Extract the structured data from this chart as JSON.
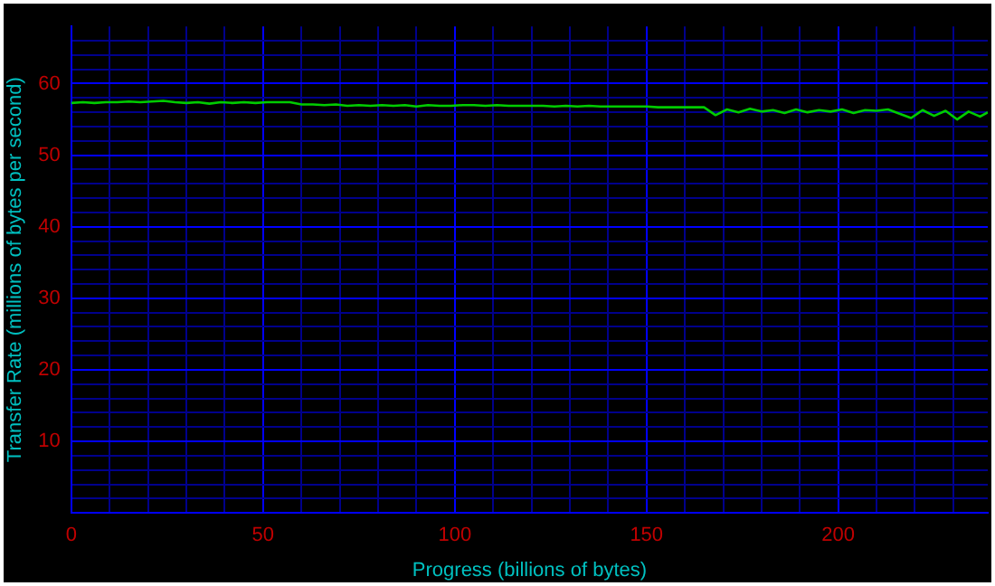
{
  "chart_data": {
    "type": "line",
    "xlabel": "Progress (billions of bytes)",
    "ylabel": "Transfer Rate (millions of bytes per second)",
    "series": [
      {
        "color": "#00cc00",
        "x": [
          0,
          3,
          6,
          9,
          12,
          15,
          18,
          21,
          24,
          27,
          30,
          33,
          36,
          39,
          42,
          45,
          48,
          51,
          54,
          57,
          60,
          63,
          66,
          69,
          72,
          75,
          78,
          81,
          84,
          87,
          90,
          93,
          96,
          99,
          102,
          105,
          108,
          111,
          114,
          117,
          120,
          123,
          126,
          129,
          132,
          135,
          138,
          141,
          144,
          147,
          150,
          153,
          156,
          159,
          162,
          165,
          168,
          171,
          174,
          177,
          180,
          183,
          186,
          189,
          192,
          195,
          198,
          201,
          204,
          207,
          210,
          213,
          216,
          219,
          222,
          225,
          228,
          231,
          234,
          237,
          239
        ],
        "values": [
          57.3,
          57.4,
          57.3,
          57.4,
          57.4,
          57.5,
          57.4,
          57.5,
          57.6,
          57.4,
          57.3,
          57.4,
          57.2,
          57.4,
          57.3,
          57.4,
          57.3,
          57.4,
          57.4,
          57.4,
          57.1,
          57.1,
          57.0,
          57.1,
          56.9,
          57.0,
          56.9,
          57.0,
          56.9,
          57.0,
          56.8,
          57.0,
          56.9,
          56.9,
          57.0,
          57.0,
          56.9,
          57.0,
          56.9,
          56.9,
          56.9,
          56.9,
          56.8,
          56.9,
          56.8,
          56.9,
          56.8,
          56.8,
          56.8,
          56.8,
          56.8,
          56.7,
          56.7,
          56.7,
          56.7,
          56.7,
          55.6,
          56.4,
          56.0,
          56.5,
          56.1,
          56.3,
          55.9,
          56.4,
          56.0,
          56.3,
          56.1,
          56.4,
          55.9,
          56.3,
          56.2,
          56.4,
          55.8,
          55.2,
          56.3,
          55.5,
          56.2,
          55.0,
          56.1,
          55.4,
          56.0
        ]
      }
    ],
    "xlim": [
      0,
      239
    ],
    "xticks": [
      0,
      {
        "value": 10,
        "label": null
      },
      {
        "value": 20,
        "label": null
      },
      {
        "value": 30,
        "label": null
      },
      {
        "value": 40,
        "label": null
      },
      50,
      {
        "value": 60,
        "label": null
      },
      {
        "value": 70,
        "label": null
      },
      {
        "value": 80,
        "label": null
      },
      {
        "value": 90,
        "label": null
      },
      100,
      {
        "value": 110,
        "label": null
      },
      {
        "value": 120,
        "label": null
      },
      {
        "value": 130,
        "label": null
      },
      {
        "value": 140,
        "label": null
      },
      150,
      {
        "value": 160,
        "label": null
      },
      {
        "value": 170,
        "label": null
      },
      {
        "value": 180,
        "label": null
      },
      {
        "value": 190,
        "label": null
      },
      200,
      {
        "value": 210,
        "label": null
      },
      {
        "value": 220,
        "label": null
      },
      {
        "value": 230,
        "label": null
      }
    ],
    "ylim": [
      0,
      68
    ],
    "yticks": [
      {
        "value": 0,
        "label": null
      },
      {
        "value": 2,
        "label": null
      },
      {
        "value": 4,
        "label": null
      },
      {
        "value": 6,
        "label": null
      },
      {
        "value": 8,
        "label": null
      },
      10,
      {
        "value": 12,
        "label": null
      },
      {
        "value": 14,
        "label": null
      },
      {
        "value": 16,
        "label": null
      },
      {
        "value": 18,
        "label": null
      },
      20,
      {
        "value": 22,
        "label": null
      },
      {
        "value": 24,
        "label": null
      },
      {
        "value": 26,
        "label": null
      },
      {
        "value": 28,
        "label": null
      },
      30,
      {
        "value": 32,
        "label": null
      },
      {
        "value": 34,
        "label": null
      },
      {
        "value": 36,
        "label": null
      },
      {
        "value": 38,
        "label": null
      },
      40,
      {
        "value": 42,
        "label": null
      },
      {
        "value": 44,
        "label": null
      },
      {
        "value": 46,
        "label": null
      },
      {
        "value": 48,
        "label": null
      },
      50,
      {
        "value": 52,
        "label": null
      },
      {
        "value": 54,
        "label": null
      },
      {
        "value": 56,
        "label": null
      },
      {
        "value": 58,
        "label": null
      },
      60,
      {
        "value": 62,
        "label": null
      },
      {
        "value": 64,
        "label": null
      },
      {
        "value": 66,
        "label": null
      }
    ],
    "grid": true,
    "legend": false,
    "marker": "none",
    "line_style": "solid"
  }
}
